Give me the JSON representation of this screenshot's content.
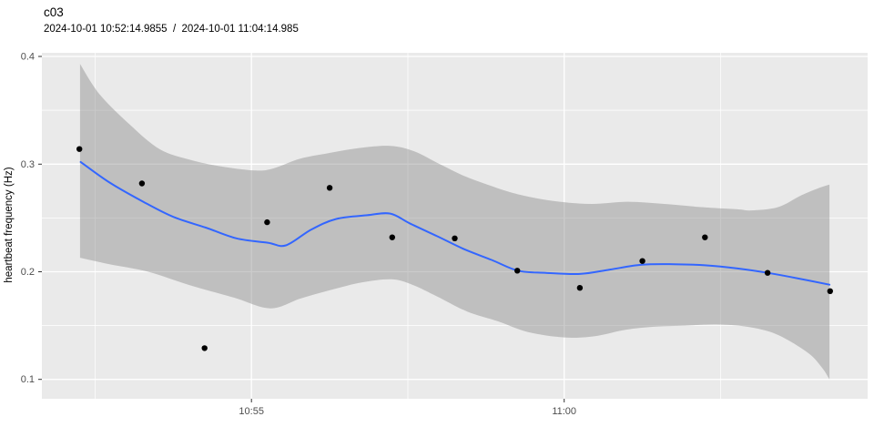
{
  "header": {
    "title": "c03",
    "subtitle": "2024-10-01 10:52:14.9855  /  2024-10-01 11:04:14.985"
  },
  "chart_data": {
    "type": "scatter",
    "title": "c03",
    "subtitle": "2024-10-01 10:52:14.9855  /  2024-10-01 11:04:14.985",
    "xlabel": "",
    "ylabel": "heartbeat frequency (Hz)",
    "x_unit": "minutes since 2024-10-01 10:52:14.9855",
    "time_start": "2024-10-01 10:52:14.9855",
    "time_end": "2024-10-01 11:04:14.985",
    "grid": "on",
    "legend": "none",
    "xlim": [
      -0.6,
      12.6
    ],
    "ylim": [
      0.082,
      0.4034
    ],
    "x_ticks": [
      {
        "t": 2.75,
        "label": "10:55"
      },
      {
        "t": 7.75,
        "label": "11:00"
      }
    ],
    "x_minor": [
      0.25,
      5.25,
      10.25
    ],
    "y_ticks": [
      {
        "v": 0.4,
        "label": "0.4"
      },
      {
        "v": 0.3,
        "label": "0.3"
      },
      {
        "v": 0.2,
        "label": "0.2"
      },
      {
        "v": 0.1,
        "label": "0.1"
      }
    ],
    "y_minor": [
      0.35,
      0.25,
      0.15
    ],
    "points": {
      "t": [
        0,
        1,
        2,
        3,
        4,
        5,
        6,
        7,
        8,
        9,
        10,
        11,
        12
      ],
      "times": [
        "10:52:15",
        "10:53:15",
        "10:54:15",
        "10:55:15",
        "10:56:15",
        "10:57:15",
        "10:58:15",
        "10:59:15",
        "11:00:15",
        "11:01:15",
        "11:02:15",
        "11:03:15",
        "11:04:15"
      ],
      "hz": [
        0.314,
        0.282,
        0.129,
        0.246,
        0.278,
        0.232,
        0.231,
        0.201,
        0.185,
        0.21,
        0.232,
        0.199,
        0.182
      ]
    },
    "smooth_line": [
      [
        0.02,
        0.302
      ],
      [
        0.48,
        0.283
      ],
      [
        1.02,
        0.265
      ],
      [
        1.5,
        0.251
      ],
      [
        2.02,
        0.241
      ],
      [
        2.51,
        0.231
      ],
      [
        3.01,
        0.227
      ],
      [
        3.3,
        0.2245
      ],
      [
        3.7,
        0.239
      ],
      [
        4.1,
        0.249
      ],
      [
        4.6,
        0.2525
      ],
      [
        4.97,
        0.254
      ],
      [
        5.28,
        0.245
      ],
      [
        5.72,
        0.233
      ],
      [
        6.15,
        0.221
      ],
      [
        6.59,
        0.211
      ],
      [
        7.01,
        0.201
      ],
      [
        7.46,
        0.199
      ],
      [
        8.0,
        0.198
      ],
      [
        8.48,
        0.202
      ],
      [
        8.99,
        0.2065
      ],
      [
        9.5,
        0.207
      ],
      [
        10.0,
        0.206
      ],
      [
        10.52,
        0.203
      ],
      [
        11.0,
        0.199
      ],
      [
        11.47,
        0.194
      ],
      [
        11.99,
        0.188
      ]
    ],
    "ribbon_upper": [
      [
        0.01,
        0.393
      ],
      [
        0.32,
        0.365
      ],
      [
        0.8,
        0.337
      ],
      [
        1.28,
        0.314
      ],
      [
        1.77,
        0.304
      ],
      [
        2.25,
        0.298
      ],
      [
        2.81,
        0.294
      ],
      [
        3.1,
        0.296
      ],
      [
        3.53,
        0.305
      ],
      [
        3.97,
        0.31
      ],
      [
        4.48,
        0.315
      ],
      [
        4.97,
        0.317
      ],
      [
        5.35,
        0.312
      ],
      [
        5.76,
        0.3
      ],
      [
        6.15,
        0.289
      ],
      [
        6.52,
        0.281
      ],
      [
        6.88,
        0.274
      ],
      [
        7.24,
        0.269
      ],
      [
        7.68,
        0.265
      ],
      [
        8.19,
        0.263
      ],
      [
        8.77,
        0.265
      ],
      [
        9.35,
        0.263
      ],
      [
        9.94,
        0.26
      ],
      [
        10.52,
        0.258
      ],
      [
        10.74,
        0.257
      ],
      [
        11.17,
        0.26
      ],
      [
        11.54,
        0.271
      ],
      [
        11.83,
        0.278
      ],
      [
        11.99,
        0.281
      ]
    ],
    "ribbon_lower": [
      [
        0.01,
        0.213
      ],
      [
        0.48,
        0.207
      ],
      [
        1.1,
        0.2
      ],
      [
        1.74,
        0.188
      ],
      [
        2.47,
        0.176
      ],
      [
        3.05,
        0.166
      ],
      [
        3.53,
        0.175
      ],
      [
        4.01,
        0.183
      ],
      [
        4.51,
        0.19
      ],
      [
        4.99,
        0.193
      ],
      [
        5.32,
        0.188
      ],
      [
        5.72,
        0.177
      ],
      [
        6.2,
        0.163
      ],
      [
        6.69,
        0.154
      ],
      [
        7.17,
        0.144
      ],
      [
        7.75,
        0.139
      ],
      [
        8.23,
        0.14
      ],
      [
        8.73,
        0.146
      ],
      [
        9.21,
        0.149
      ],
      [
        9.69,
        0.15
      ],
      [
        10.18,
        0.151
      ],
      [
        10.66,
        0.149
      ],
      [
        11.14,
        0.142
      ],
      [
        11.64,
        0.125
      ],
      [
        11.87,
        0.111
      ],
      [
        11.99,
        0.1
      ]
    ],
    "colors": {
      "panel": "#EAEAEA",
      "grid": "#FFFFFF",
      "ribbon": "#8C8C8C",
      "ribbon_opacity": 0.45,
      "line": "#3366FF",
      "point": "#000000",
      "tick_text": "#4D4D4D",
      "tick_mark": "#333333"
    }
  }
}
